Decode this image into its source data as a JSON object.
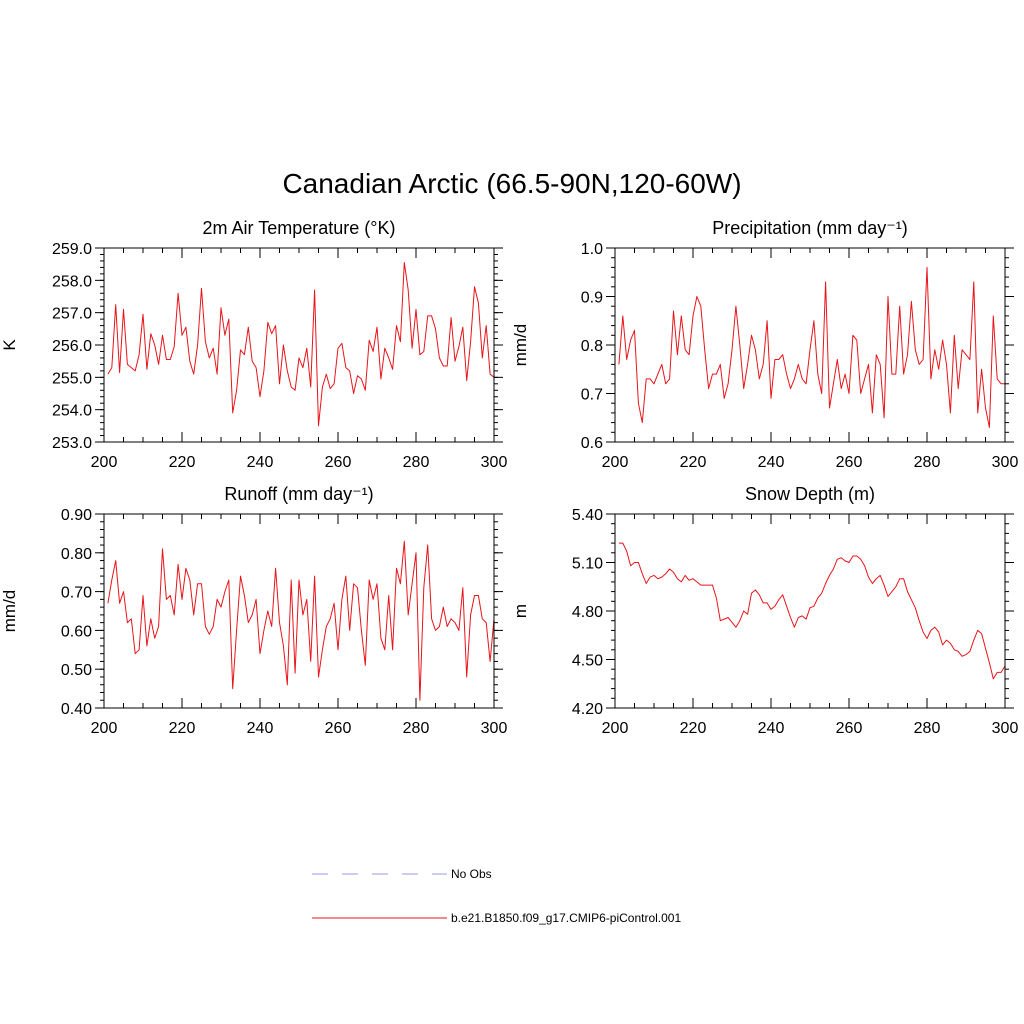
{
  "title": "Canadian Arctic (66.5-90N,120-60W)",
  "legend": {
    "obs_label": "No Obs",
    "model_label": "b.e21.B1850.f09_g17.CMIP6-piControl.001"
  },
  "colors": {
    "model": "#e8141a",
    "obs": "#9a9ae8",
    "axis": "#000000"
  },
  "chart_data": [
    {
      "type": "line",
      "title": "2m Air Temperature (°K)",
      "ylabel": "K",
      "xlabel": "",
      "xlim": [
        200,
        300
      ],
      "ylim": [
        253.0,
        259.0
      ],
      "yticks": [
        "253.0",
        "254.0",
        "255.0",
        "256.0",
        "257.0",
        "258.0",
        "259.0"
      ],
      "xticks": [
        "200",
        "220",
        "240",
        "260",
        "280",
        "300"
      ],
      "series": [
        {
          "name": "b.e21.B1850.f09_g17.CMIP6-piControl.001",
          "x_start": 201,
          "values": [
            255.1,
            255.3,
            257.25,
            255.15,
            257.1,
            255.4,
            255.3,
            255.2,
            255.7,
            256.95,
            255.25,
            256.35,
            256.0,
            255.4,
            256.3,
            255.55,
            255.55,
            255.95,
            257.6,
            256.3,
            256.55,
            255.5,
            255.1,
            256.0,
            257.75,
            256.1,
            255.6,
            255.9,
            255.1,
            257.15,
            256.3,
            256.8,
            253.9,
            254.6,
            255.85,
            255.7,
            256.55,
            255.5,
            255.3,
            254.4,
            255.2,
            256.7,
            256.35,
            256.6,
            254.8,
            256.0,
            255.2,
            254.7,
            254.6,
            255.6,
            255.3,
            255.9,
            254.7,
            257.7,
            253.5,
            254.7,
            255.1,
            254.65,
            254.8,
            255.9,
            256.05,
            255.3,
            255.2,
            254.5,
            255.05,
            254.95,
            254.6,
            256.15,
            255.8,
            256.55,
            254.95,
            255.9,
            255.6,
            255.25,
            256.6,
            256.1,
            258.55,
            257.7,
            255.9,
            257.1,
            255.7,
            255.8,
            256.9,
            256.9,
            256.5,
            255.6,
            255.35,
            255.35,
            256.85,
            255.5,
            255.95,
            256.55,
            254.9,
            256.1,
            257.8,
            257.3,
            255.6,
            256.6,
            255.1,
            255.0
          ]
        }
      ]
    },
    {
      "type": "line",
      "title": "Precipitation (mm day⁻¹)",
      "ylabel": "mm/d",
      "xlabel": "",
      "xlim": [
        200,
        300
      ],
      "ylim": [
        0.6,
        1.0
      ],
      "yticks": [
        "0.6",
        "0.7",
        "0.8",
        "0.9",
        "1.0"
      ],
      "xticks": [
        "200",
        "220",
        "240",
        "260",
        "280",
        "300"
      ],
      "series": [
        {
          "name": "b.e21.B1850.f09_g17.CMIP6-piControl.001",
          "x_start": 201,
          "values": [
            0.76,
            0.86,
            0.77,
            0.81,
            0.83,
            0.68,
            0.64,
            0.73,
            0.73,
            0.72,
            0.74,
            0.76,
            0.72,
            0.73,
            0.87,
            0.78,
            0.86,
            0.79,
            0.78,
            0.86,
            0.9,
            0.88,
            0.79,
            0.71,
            0.74,
            0.74,
            0.76,
            0.69,
            0.72,
            0.79,
            0.88,
            0.8,
            0.71,
            0.76,
            0.82,
            0.79,
            0.73,
            0.76,
            0.85,
            0.69,
            0.77,
            0.77,
            0.78,
            0.74,
            0.71,
            0.73,
            0.76,
            0.73,
            0.72,
            0.79,
            0.85,
            0.74,
            0.7,
            0.93,
            0.67,
            0.72,
            0.77,
            0.71,
            0.74,
            0.7,
            0.82,
            0.81,
            0.7,
            0.73,
            0.76,
            0.66,
            0.78,
            0.76,
            0.65,
            0.9,
            0.74,
            0.74,
            0.88,
            0.74,
            0.78,
            0.89,
            0.79,
            0.76,
            0.77,
            0.96,
            0.73,
            0.79,
            0.75,
            0.81,
            0.76,
            0.66,
            0.82,
            0.71,
            0.79,
            0.78,
            0.77,
            0.93,
            0.66,
            0.75,
            0.67,
            0.63,
            0.86,
            0.73,
            0.72,
            0.72
          ]
        }
      ]
    },
    {
      "type": "line",
      "title": "Runoff (mm day⁻¹)",
      "ylabel": "mm/d",
      "xlabel": "",
      "xlim": [
        200,
        300
      ],
      "ylim": [
        0.4,
        0.9
      ],
      "yticks": [
        "0.40",
        "0.50",
        "0.60",
        "0.70",
        "0.80",
        "0.90"
      ],
      "xticks": [
        "200",
        "220",
        "240",
        "260",
        "280",
        "300"
      ],
      "series": [
        {
          "name": "b.e21.B1850.f09_g17.CMIP6-piControl.001",
          "x_start": 201,
          "values": [
            0.67,
            0.73,
            0.78,
            0.67,
            0.7,
            0.62,
            0.63,
            0.54,
            0.55,
            0.69,
            0.56,
            0.63,
            0.58,
            0.61,
            0.81,
            0.68,
            0.69,
            0.64,
            0.77,
            0.68,
            0.76,
            0.73,
            0.64,
            0.72,
            0.72,
            0.61,
            0.59,
            0.61,
            0.68,
            0.66,
            0.7,
            0.73,
            0.45,
            0.6,
            0.74,
            0.69,
            0.62,
            0.64,
            0.68,
            0.54,
            0.6,
            0.65,
            0.61,
            0.76,
            0.62,
            0.56,
            0.46,
            0.73,
            0.49,
            0.73,
            0.64,
            0.68,
            0.52,
            0.74,
            0.48,
            0.55,
            0.61,
            0.63,
            0.67,
            0.55,
            0.68,
            0.74,
            0.6,
            0.72,
            0.71,
            0.6,
            0.51,
            0.73,
            0.68,
            0.72,
            0.58,
            0.55,
            0.69,
            0.55,
            0.76,
            0.72,
            0.83,
            0.64,
            0.72,
            0.8,
            0.42,
            0.71,
            0.82,
            0.63,
            0.6,
            0.61,
            0.66,
            0.61,
            0.63,
            0.62,
            0.6,
            0.71,
            0.48,
            0.64,
            0.69,
            0.69,
            0.63,
            0.62,
            0.52,
            0.63
          ]
        }
      ]
    },
    {
      "type": "line",
      "title": "Snow Depth (m)",
      "ylabel": "m",
      "xlabel": "",
      "xlim": [
        200,
        300
      ],
      "ylim": [
        4.2,
        5.4
      ],
      "yticks": [
        "4.20",
        "4.50",
        "4.80",
        "5.10",
        "5.40"
      ],
      "xticks": [
        "200",
        "220",
        "240",
        "260",
        "280",
        "300"
      ],
      "series": [
        {
          "name": "b.e21.B1850.f09_g17.CMIP6-piControl.001",
          "x_start": 201,
          "values": [
            5.22,
            5.22,
            5.17,
            5.08,
            5.1,
            5.1,
            5.03,
            4.97,
            5.01,
            5.02,
            5.0,
            5.01,
            5.03,
            5.06,
            5.04,
            5.0,
            4.98,
            5.02,
            4.99,
            5.0,
            4.98,
            4.96,
            4.96,
            4.96,
            4.96,
            4.88,
            4.74,
            4.75,
            4.76,
            4.73,
            4.7,
            4.74,
            4.8,
            4.78,
            4.91,
            4.93,
            4.9,
            4.85,
            4.85,
            4.81,
            4.83,
            4.87,
            4.9,
            4.83,
            4.76,
            4.7,
            4.76,
            4.77,
            4.75,
            4.82,
            4.83,
            4.88,
            4.91,
            4.97,
            5.02,
            5.06,
            5.12,
            5.13,
            5.11,
            5.1,
            5.14,
            5.14,
            5.12,
            5.08,
            5.01,
            4.97,
            5.0,
            5.02,
            4.96,
            4.89,
            4.92,
            4.95,
            5.0,
            5.0,
            4.92,
            4.87,
            4.82,
            4.74,
            4.67,
            4.63,
            4.68,
            4.7,
            4.67,
            4.59,
            4.62,
            4.6,
            4.56,
            4.55,
            4.52,
            4.53,
            4.55,
            4.62,
            4.68,
            4.66,
            4.57,
            4.48,
            4.38,
            4.42,
            4.42,
            4.46
          ]
        }
      ]
    }
  ]
}
